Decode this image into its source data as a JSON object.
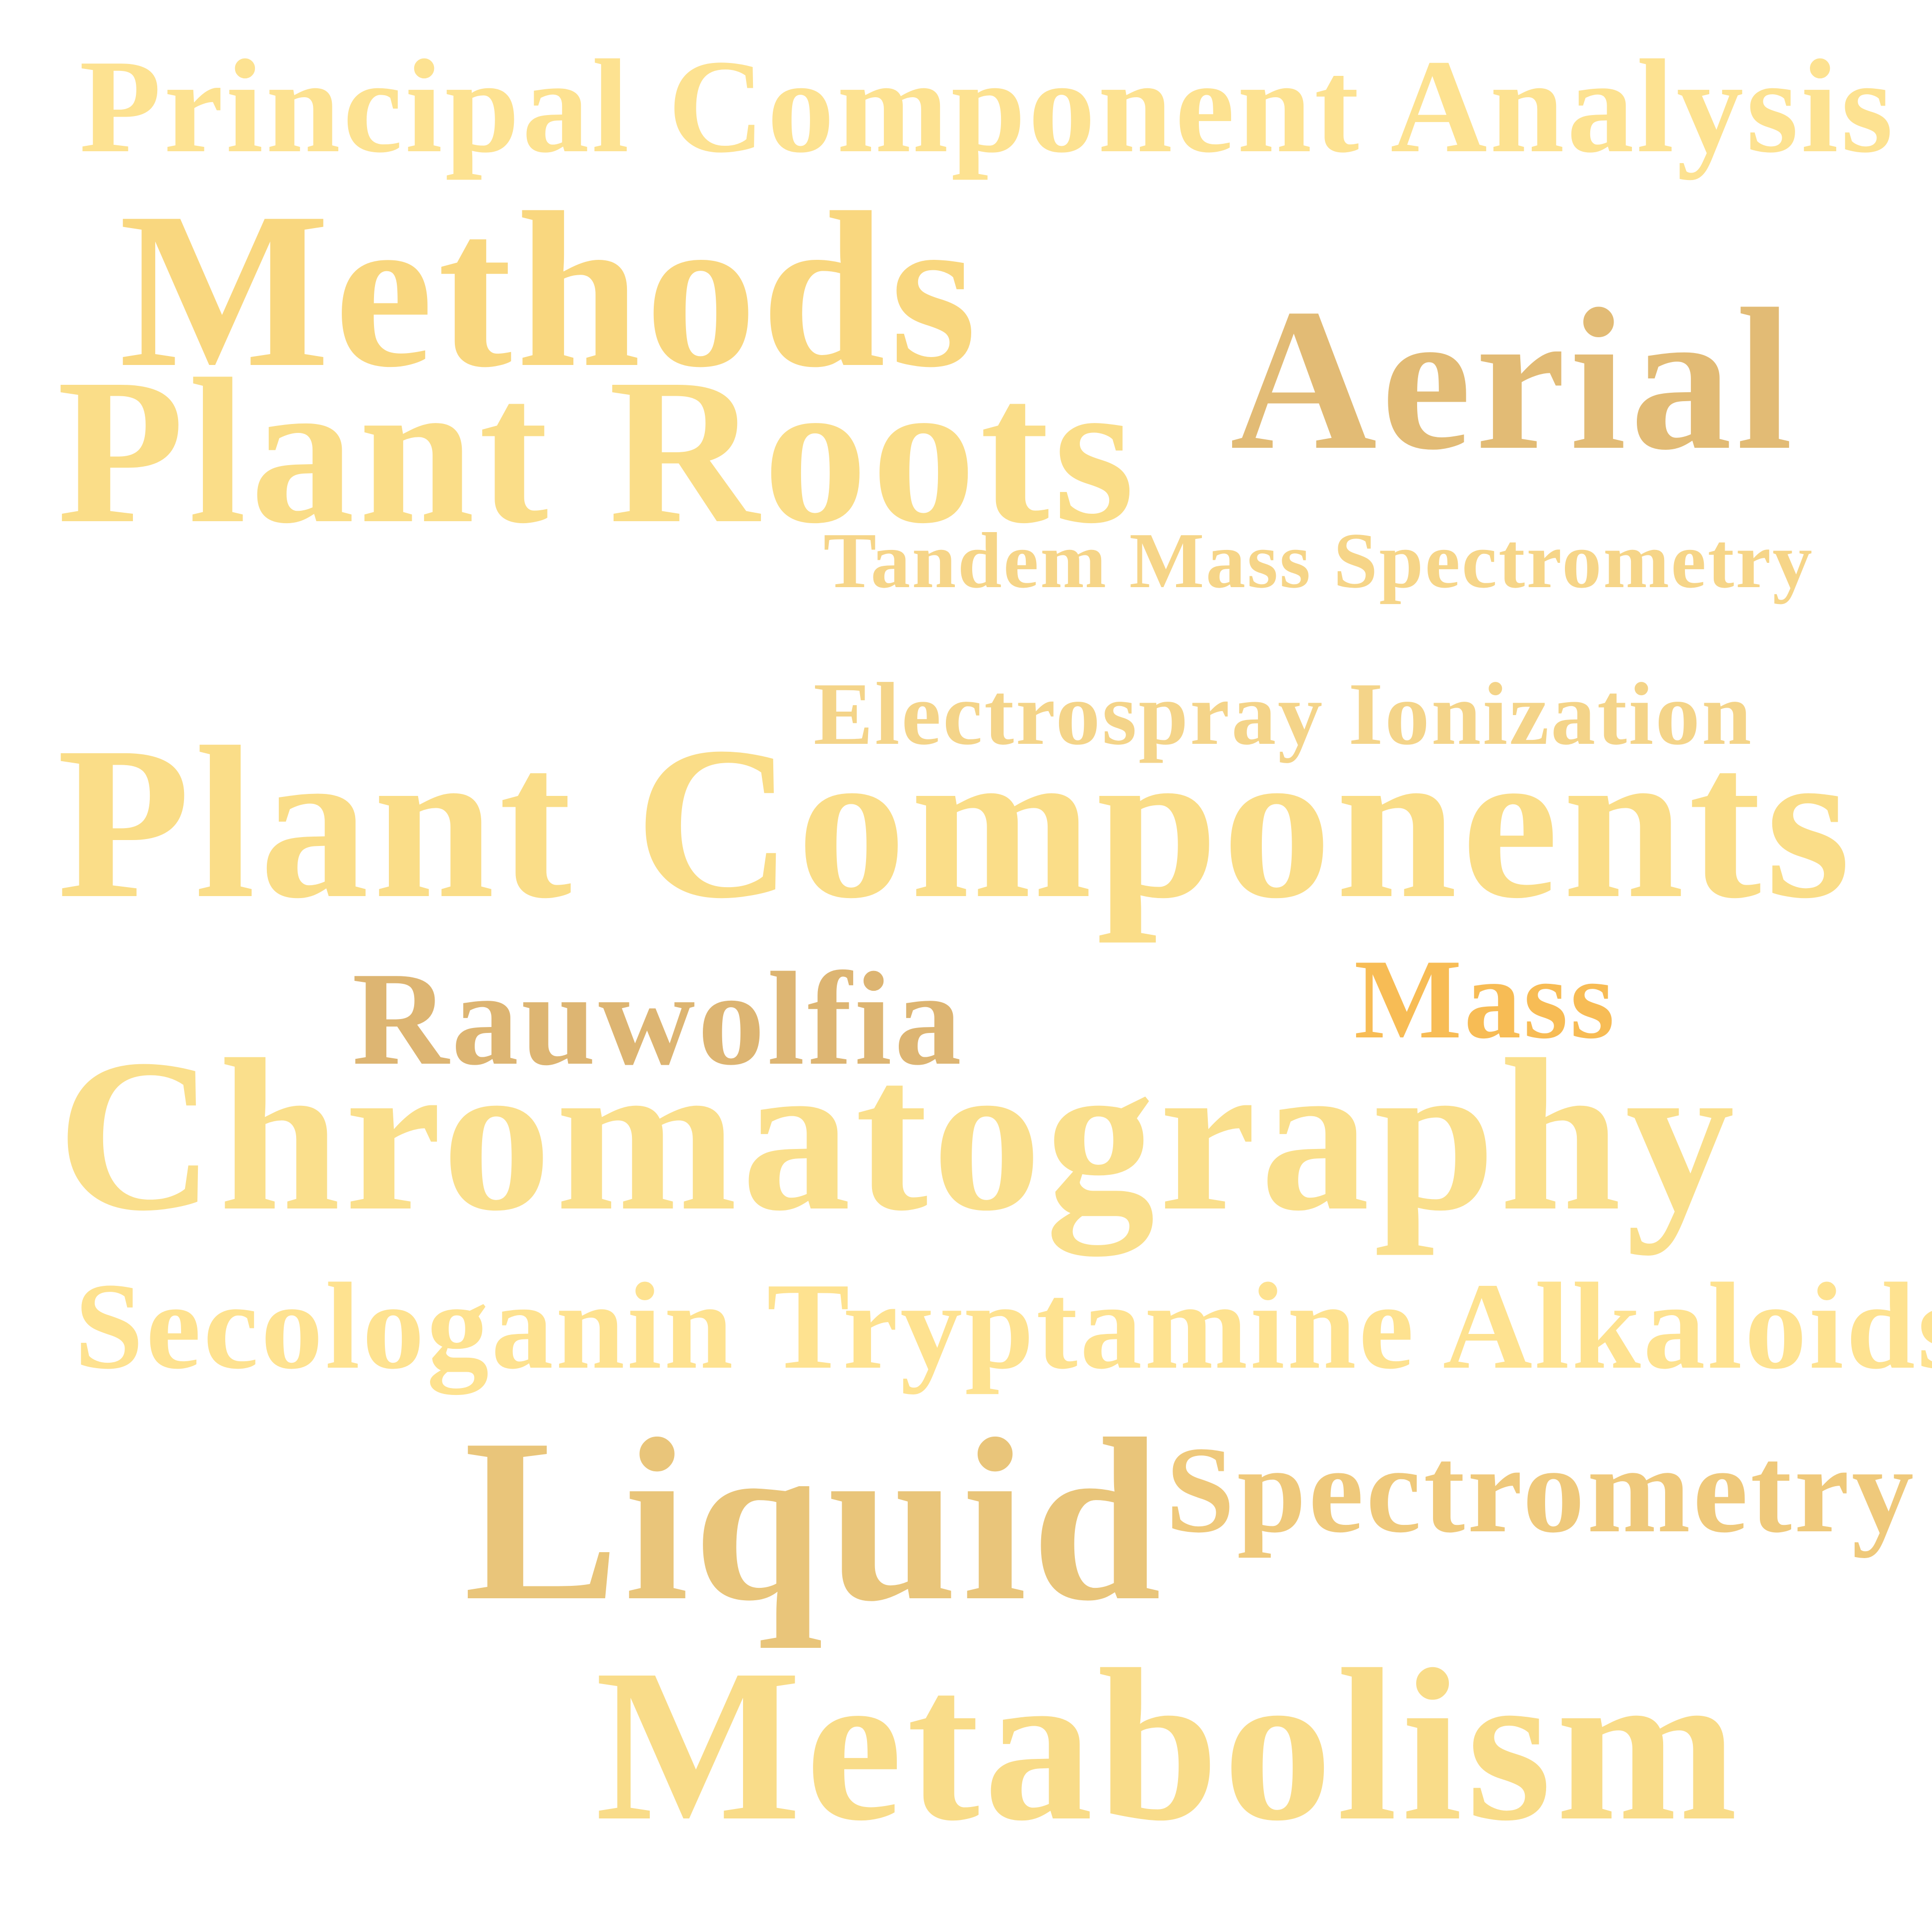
{
  "words": [
    {
      "key": "pca",
      "text": "Principal Component Analysis",
      "color": "#FDE291"
    },
    {
      "key": "methods",
      "text": "Methods",
      "color": "#F9D77F"
    },
    {
      "key": "aerial",
      "text": "Aerial",
      "color": "#E2BB75"
    },
    {
      "key": "roots",
      "text": "Plant Roots",
      "color": "#FADD88"
    },
    {
      "key": "tandem",
      "text": "Tandem Mass Spectrometry",
      "color": "#F6D588"
    },
    {
      "key": "esi",
      "text": "Electrospray Ionization",
      "color": "#F4D489"
    },
    {
      "key": "components",
      "text": "Plant Components",
      "color": "#FADD88"
    },
    {
      "key": "mass",
      "text": "Mass",
      "color": "#F7BC55"
    },
    {
      "key": "rauwolfia",
      "text": "Rauwolfia",
      "color": "#DDB572"
    },
    {
      "key": "chroma",
      "text": "Chromatography",
      "color": "#FADF8C"
    },
    {
      "key": "seco",
      "text": "Secologanin Tryptamine Alkaloids",
      "color": "#FEE290"
    },
    {
      "key": "liquid",
      "text": "Liquid",
      "color": "#E9C57A"
    },
    {
      "key": "spectro",
      "text": "Spectrometry",
      "color": "#EFC97B"
    },
    {
      "key": "metab",
      "text": "Metabolism",
      "color": "#F9DC89"
    }
  ]
}
